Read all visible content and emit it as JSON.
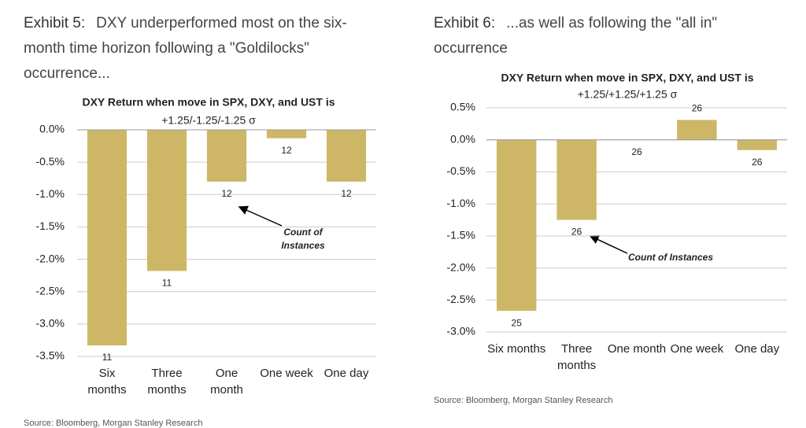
{
  "exhibits": [
    {
      "label": "Exhibit 5:",
      "caption": "DXY underperformed most on the six-month time horizon following a \"Goldilocks\" occurrence...",
      "source": "Source: Bloomberg, Morgan Stanley Research"
    },
    {
      "label": "Exhibit 6:",
      "caption": "...as well as following the \"all in\" occurrence",
      "source": "Source: Bloomberg, Morgan Stanley Research"
    }
  ],
  "chart_data": [
    {
      "type": "bar",
      "title": "DXY Return when move in SPX, DXY, and UST is",
      "subtitle": "+1.25/-1.25/-1.25 σ",
      "categories": [
        "Six months",
        "Three months",
        "One month",
        "One week",
        "One day"
      ],
      "values": [
        -3.33,
        -2.18,
        -0.8,
        -0.13,
        -0.8
      ],
      "counts": [
        11,
        11,
        12,
        12,
        12
      ],
      "color": "#cdb767",
      "ylim": [
        -3.5,
        0
      ],
      "yticks": [
        {
          "value": 0,
          "label": "0.0%"
        },
        {
          "value": -0.5,
          "label": "-0.5%"
        },
        {
          "value": -1,
          "label": "-1.0%"
        },
        {
          "value": -1.5,
          "label": "-1.5%"
        },
        {
          "value": -2,
          "label": "-2.0%"
        },
        {
          "value": -2.5,
          "label": "-2.5%"
        },
        {
          "value": -3,
          "label": "-3.0%"
        },
        {
          "value": -3.5,
          "label": "-3.5%"
        }
      ],
      "grid": true,
      "annotation_lines": [
        "Count of",
        "Instances"
      ]
    },
    {
      "type": "bar",
      "title": "DXY Return when move in SPX, DXY, and UST is",
      "subtitle": "+1.25/+1.25/+1.25 σ",
      "categories": [
        "Six months",
        "Three months",
        "One month",
        "One week",
        "One day"
      ],
      "values": [
        -2.67,
        -1.25,
        0,
        0.31,
        -0.16
      ],
      "counts": [
        25,
        26,
        26,
        26,
        26
      ],
      "color": "#cdb767",
      "ylim": [
        -3,
        0.5
      ],
      "yticks": [
        {
          "value": 0.5,
          "label": "0.5%"
        },
        {
          "value": 0,
          "label": "0.0%"
        },
        {
          "value": -0.5,
          "label": "-0.5%"
        },
        {
          "value": -1,
          "label": "-1.0%"
        },
        {
          "value": -1.5,
          "label": "-1.5%"
        },
        {
          "value": -2,
          "label": "-2.0%"
        },
        {
          "value": -2.5,
          "label": "-2.5%"
        },
        {
          "value": -3,
          "label": "-3.0%"
        }
      ],
      "grid": true,
      "annotation_lines": [
        "Count of Instances"
      ]
    }
  ]
}
